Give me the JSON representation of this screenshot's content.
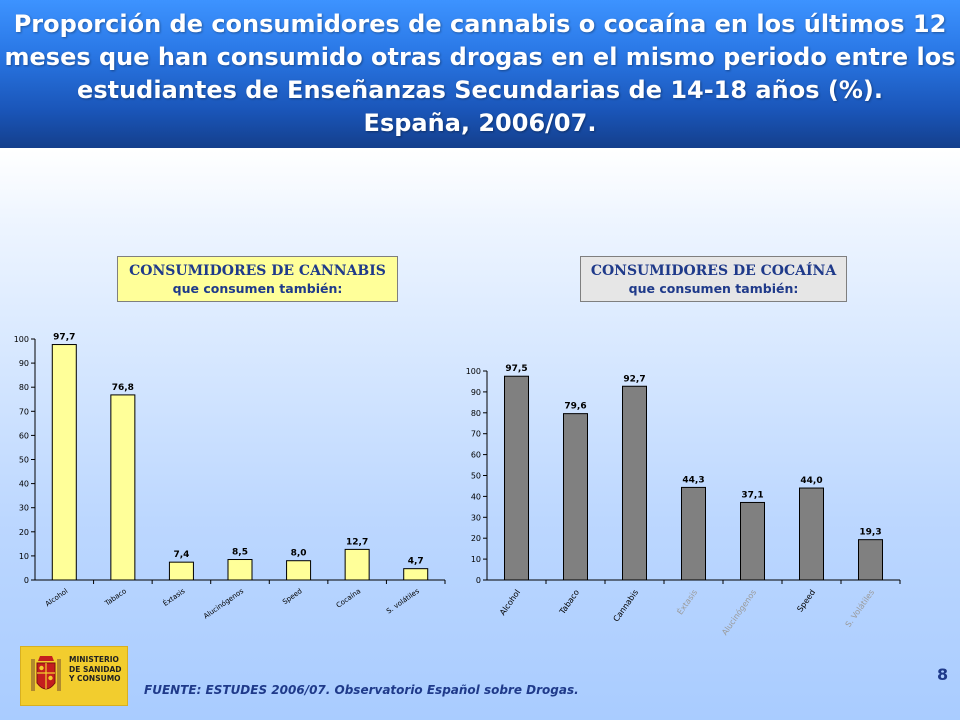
{
  "header": {
    "title_lines": [
      "Proporción de consumidores de cannabis o cocaína en los últimos 12",
      "meses que han consumido otras drogas en el mismo periodo entre los",
      "estudiantes de Enseñanzas Secundarias de 14-18 años (%).",
      "España, 2006/07."
    ]
  },
  "boxes": {
    "cannabis": {
      "line1": "CONSUMIDORES DE CANNABIS",
      "line2": "que consumen también:"
    },
    "cocaina": {
      "line1": "CONSUMIDORES DE COCAÍNA",
      "line2": "que consumen también:"
    }
  },
  "footer": {
    "source": "FUENTE: ESTUDES 2006/07. Observatorio Español sobre Drogas.",
    "page_number": "8",
    "logo_lines": [
      "MINISTERIO",
      "DE SANIDAD",
      "Y CONSUMO"
    ]
  },
  "colors": {
    "header_blue": "#1a55b8",
    "cannabis_bar": "#ffff99",
    "cocaina_bar": "#808080",
    "box_text": "#1f3a8a"
  },
  "chart_data": [
    {
      "type": "bar",
      "title": "",
      "categories": [
        "Alcohol",
        "Tabaco",
        "Éxtasis",
        "Alucinógenos",
        "Speed",
        "Cocaína",
        "S. volátiles"
      ],
      "values": [
        97.7,
        76.8,
        7.4,
        8.5,
        8.0,
        12.7,
        4.7
      ],
      "value_labels": [
        "97,7",
        "76,8",
        "7,4",
        "8,5",
        "8,0",
        "12,7",
        "4,7"
      ],
      "ylim": [
        0,
        100
      ],
      "yticks": [
        0,
        10,
        20,
        30,
        40,
        50,
        60,
        70,
        80,
        90,
        100
      ],
      "grid": false,
      "bar_color": "#ffff99"
    },
    {
      "type": "bar",
      "title": "",
      "categories": [
        "Alcohol",
        "Tabaco",
        "Cannabis",
        "Éxtasis",
        "Alucinógenos",
        "Speed",
        "S. Volátiles"
      ],
      "values": [
        97.5,
        79.6,
        92.7,
        44.3,
        37.1,
        44.0,
        19.3
      ],
      "value_labels": [
        "97,5",
        "79,6",
        "92,7",
        "44,3",
        "37,1",
        "44,0",
        "19,3"
      ],
      "ylim": [
        0,
        100
      ],
      "yticks": [
        0,
        10,
        20,
        30,
        40,
        50,
        60,
        70,
        80,
        90,
        100
      ],
      "grid": false,
      "bar_color": "#808080"
    }
  ]
}
